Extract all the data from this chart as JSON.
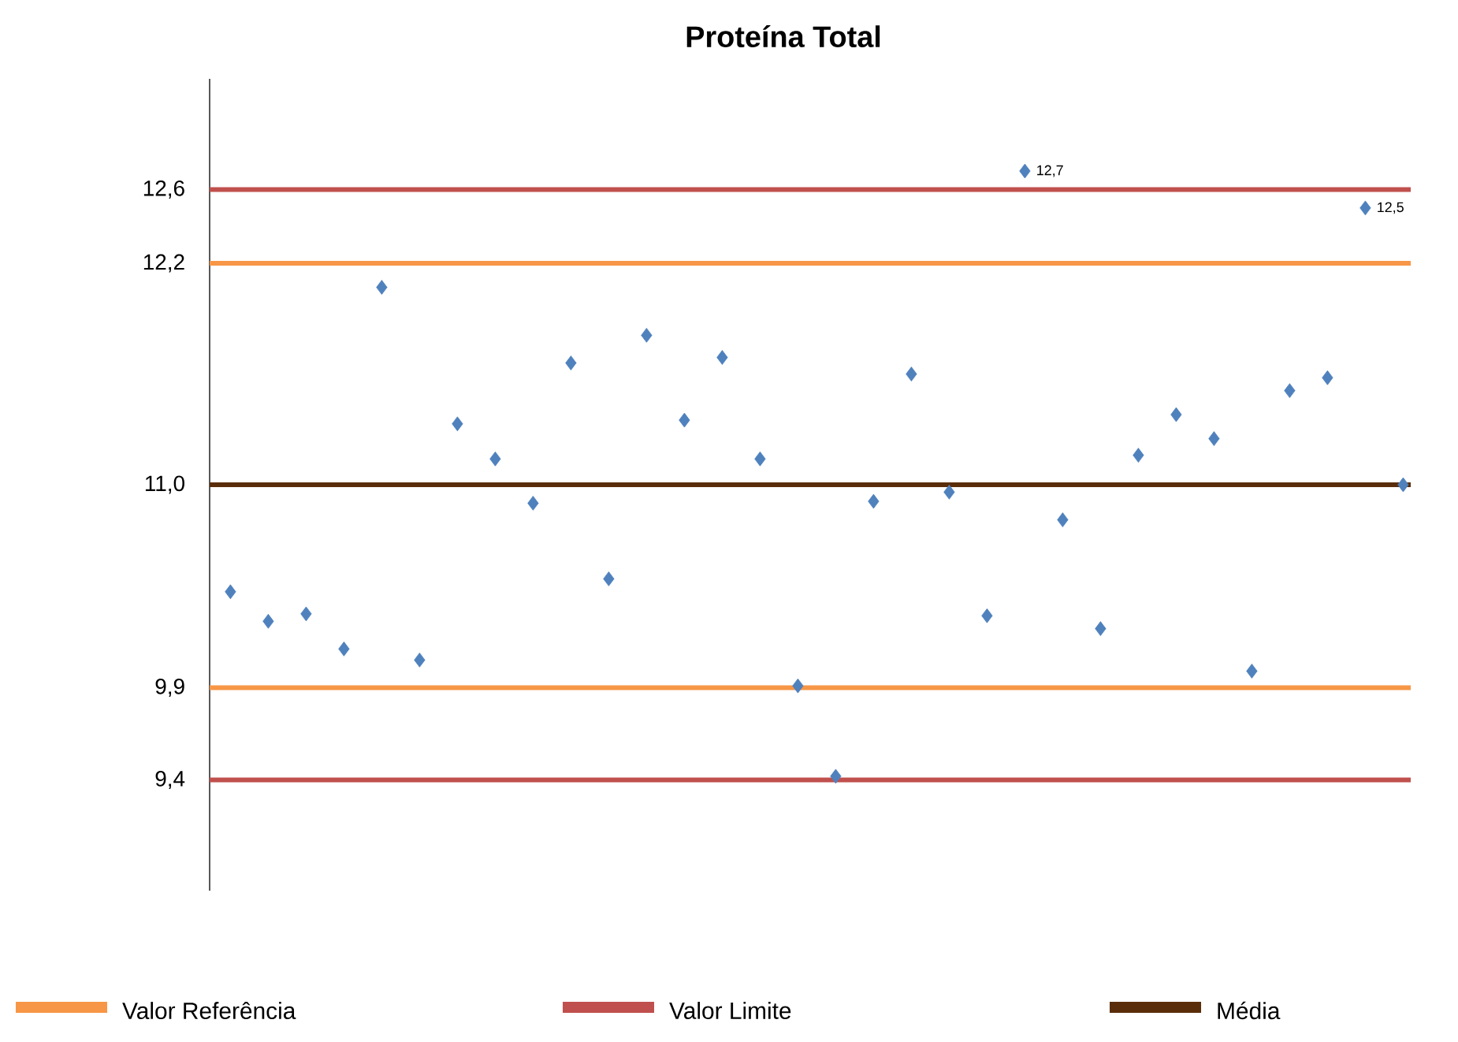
{
  "chart_data": {
    "type": "scatter",
    "title": "Proteína Total",
    "categories": [
      null,
      null,
      null,
      null,
      null,
      null,
      null,
      null,
      null,
      null,
      null,
      null,
      null,
      null,
      null,
      null,
      null,
      null,
      null,
      null,
      null,
      null,
      null,
      null,
      null,
      null,
      null,
      null,
      null,
      null,
      null,
      null
    ],
    "series": [
      {
        "color": "#4f81bd",
        "values": [
          10.42,
          10.26,
          10.3,
          10.11,
          12.07,
          10.05,
          11.33,
          11.14,
          10.9,
          11.66,
          10.49,
          11.81,
          11.35,
          11.69,
          11.14,
          9.91,
          9.42,
          10.91,
          11.6,
          10.96,
          10.29,
          12.7,
          10.81,
          10.22,
          11.16,
          11.38,
          11.25,
          9.99,
          11.51,
          11.58,
          12.5,
          11.0
        ],
        "value_labels": [
          null,
          null,
          null,
          null,
          null,
          null,
          null,
          null,
          null,
          null,
          null,
          null,
          null,
          null,
          null,
          null,
          null,
          null,
          null,
          null,
          null,
          "12,7",
          null,
          null,
          null,
          null,
          null,
          null,
          null,
          null,
          "12,5",
          null
        ]
      }
    ],
    "ylim": [
      8.8,
      13.2
    ],
    "yticks": [
      {
        "value": 9.4,
        "label": "9,4"
      },
      {
        "value": 9.9,
        "label": "9,9"
      },
      {
        "value": 11.0,
        "label": "11,0"
      },
      {
        "value": 12.2,
        "label": "12,2"
      },
      {
        "value": 12.6,
        "label": "12,6"
      }
    ],
    "ref_lines": [
      {
        "axis": "y",
        "value": 12.2,
        "label": "Valor Referência",
        "color": "#f79646"
      },
      {
        "axis": "y",
        "value": 12.6,
        "label": "Valor Limite",
        "color": "#c0504d"
      },
      {
        "axis": "y",
        "value": 11.0,
        "label": "Média",
        "color": "#5a2d0a"
      },
      {
        "axis": "y",
        "value": 9.9,
        "color": "#f79646"
      },
      {
        "axis": "y",
        "value": 9.4,
        "color": "#c0504d"
      }
    ],
    "marker": "diamond",
    "legend": "bottom",
    "tick_labels": "y"
  }
}
